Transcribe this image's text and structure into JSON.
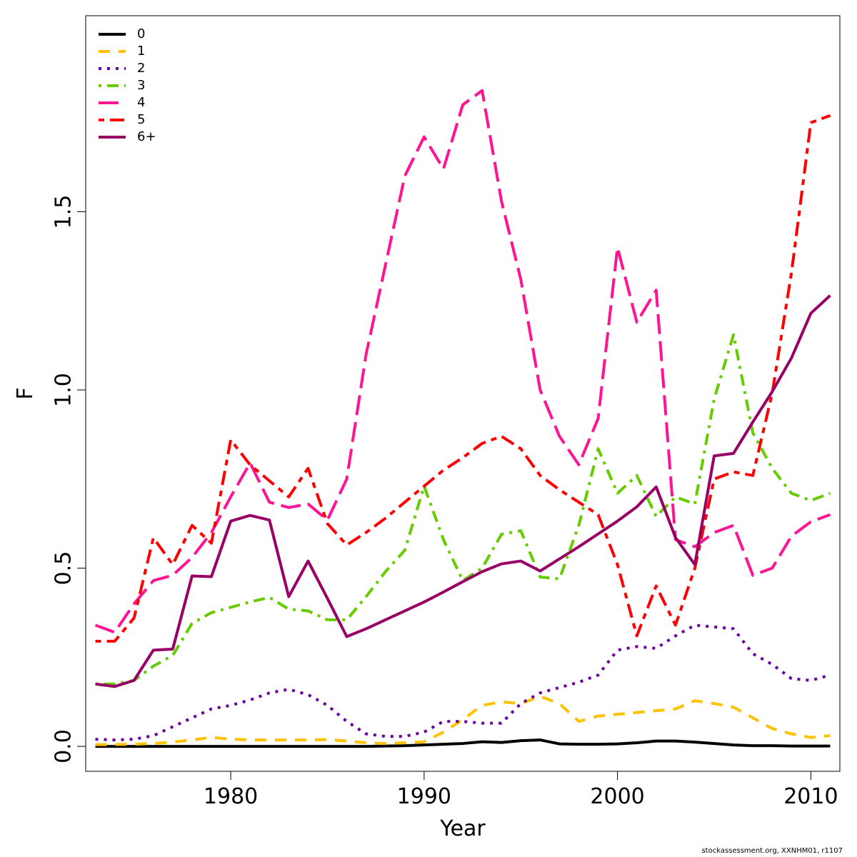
{
  "chart_data": {
    "type": "line",
    "title": "",
    "xlabel": "Year",
    "ylabel": "F",
    "xlim": [
      1972.5,
      2011.5
    ],
    "ylim": [
      -0.07,
      2.05
    ],
    "x_ticks": [
      1980,
      1990,
      2000,
      2010
    ],
    "x_tick_labels": [
      "1980",
      "1990",
      "2000",
      "2010"
    ],
    "y_ticks": [
      0.0,
      0.5,
      1.0,
      1.5
    ],
    "y_tick_labels": [
      "0.0",
      "0.5",
      "1.0",
      "1.5"
    ],
    "grid": false,
    "legend_position": "top-left",
    "x": [
      1973,
      1974,
      1975,
      1976,
      1977,
      1978,
      1979,
      1980,
      1981,
      1982,
      1983,
      1984,
      1985,
      1986,
      1987,
      1988,
      1989,
      1990,
      1991,
      1992,
      1993,
      1994,
      1995,
      1996,
      1997,
      1998,
      1999,
      2000,
      2001,
      2002,
      2003,
      2004,
      2005,
      2006,
      2007,
      2008,
      2009,
      2010,
      2011
    ],
    "series": [
      {
        "name": "0",
        "color": "#000000",
        "dash": "solid",
        "values": [
          0.0,
          0.0,
          0.0,
          0.0,
          0.0,
          0.0,
          0.0,
          0.0,
          0.0,
          0.0,
          0.0,
          0.0,
          0.0,
          0.0,
          0.0,
          0.001,
          0.002,
          0.004,
          0.006,
          0.008,
          0.013,
          0.011,
          0.016,
          0.018,
          0.007,
          0.006,
          0.006,
          0.007,
          0.01,
          0.015,
          0.015,
          0.012,
          0.008,
          0.004,
          0.002,
          0.002,
          0.001,
          0.001,
          0.001
        ]
      },
      {
        "name": "1",
        "color": "#FFC200",
        "dash": "dashed",
        "values": [
          0.005,
          0.005,
          0.006,
          0.008,
          0.012,
          0.018,
          0.025,
          0.02,
          0.018,
          0.018,
          0.018,
          0.018,
          0.019,
          0.015,
          0.01,
          0.008,
          0.01,
          0.013,
          0.04,
          0.075,
          0.115,
          0.125,
          0.12,
          0.14,
          0.12,
          0.07,
          0.085,
          0.09,
          0.095,
          0.1,
          0.105,
          0.128,
          0.12,
          0.11,
          0.08,
          0.05,
          0.035,
          0.025,
          0.03
        ]
      },
      {
        "name": "2",
        "color": "#6A00A0",
        "dash": "dotted",
        "values": [
          0.02,
          0.018,
          0.02,
          0.03,
          0.055,
          0.08,
          0.105,
          0.115,
          0.13,
          0.15,
          0.16,
          0.145,
          0.115,
          0.07,
          0.035,
          0.028,
          0.028,
          0.04,
          0.07,
          0.07,
          0.065,
          0.065,
          0.12,
          0.15,
          0.165,
          0.18,
          0.2,
          0.27,
          0.28,
          0.275,
          0.31,
          0.34,
          0.335,
          0.33,
          0.26,
          0.23,
          0.19,
          0.185,
          0.2
        ]
      },
      {
        "name": "3",
        "color": "#66CC00",
        "dash": "dashdot",
        "values": [
          0.175,
          0.175,
          0.185,
          0.225,
          0.255,
          0.345,
          0.375,
          0.39,
          0.405,
          0.418,
          0.385,
          0.38,
          0.355,
          0.355,
          0.42,
          0.49,
          0.55,
          0.73,
          0.58,
          0.465,
          0.5,
          0.595,
          0.605,
          0.475,
          0.47,
          0.62,
          0.835,
          0.71,
          0.76,
          0.645,
          0.7,
          0.68,
          0.975,
          1.155,
          0.88,
          0.78,
          0.71,
          0.69,
          0.71
        ]
      },
      {
        "name": "4",
        "color": "#FF1493",
        "dash": "longdash",
        "values": [
          0.34,
          0.32,
          0.4,
          0.465,
          0.48,
          0.53,
          0.6,
          0.7,
          0.795,
          0.685,
          0.67,
          0.68,
          0.635,
          0.75,
          1.1,
          1.35,
          1.6,
          1.71,
          1.62,
          1.8,
          1.84,
          1.53,
          1.31,
          1.0,
          0.87,
          0.79,
          0.92,
          1.4,
          1.19,
          1.28,
          0.58,
          0.56,
          0.6,
          0.62,
          0.48,
          0.5,
          0.59,
          0.63,
          0.65
        ]
      },
      {
        "name": "5",
        "color": "#FF0000",
        "dash": "twodash",
        "values": [
          0.295,
          0.295,
          0.36,
          0.585,
          0.51,
          0.62,
          0.57,
          0.86,
          0.79,
          0.745,
          0.7,
          0.78,
          0.625,
          0.565,
          0.6,
          0.64,
          0.685,
          0.73,
          0.775,
          0.81,
          0.85,
          0.87,
          0.835,
          0.76,
          0.72,
          0.685,
          0.65,
          0.51,
          0.31,
          0.45,
          0.34,
          0.5,
          0.75,
          0.77,
          0.76,
          0.99,
          1.33,
          1.75,
          1.77
        ]
      },
      {
        "name": "6+",
        "color": "#990066",
        "dash": "solid",
        "values": [
          0.175,
          0.168,
          0.185,
          0.27,
          0.273,
          0.478,
          0.476,
          0.632,
          0.648,
          0.635,
          0.42,
          0.52,
          0.415,
          0.308,
          0.33,
          0.355,
          0.38,
          0.405,
          0.433,
          0.462,
          0.49,
          0.512,
          0.52,
          0.492,
          0.526,
          0.56,
          0.596,
          0.632,
          0.672,
          0.728,
          0.586,
          0.51,
          0.815,
          0.822,
          0.91,
          0.995,
          1.09,
          1.215,
          1.265
        ]
      }
    ]
  },
  "footer": {
    "credit": "stockassessment.org, XXNHM01, r1107"
  }
}
